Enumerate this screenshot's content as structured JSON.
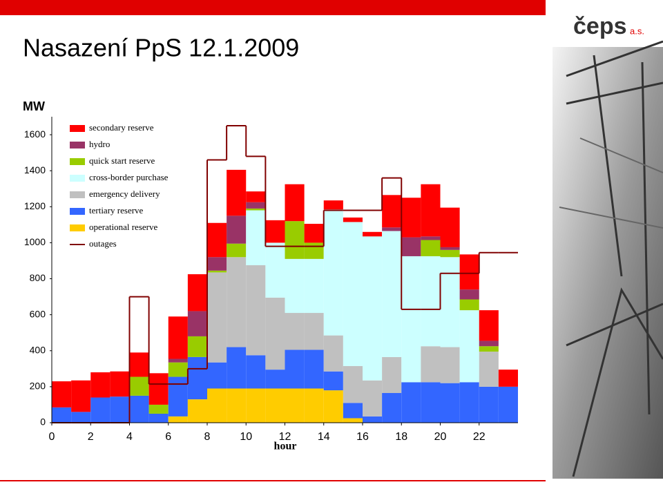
{
  "header": {
    "title": "Nasazení PpS 12.1.2009",
    "logo": "čeps",
    "logo_suffix": "a.s."
  },
  "chart_data": {
    "type": "stacked_bar",
    "y_label": "MW",
    "x_label": "hour",
    "x": [
      0,
      1,
      2,
      3,
      4,
      5,
      6,
      7,
      8,
      9,
      10,
      11,
      12,
      13,
      14,
      15,
      16,
      17,
      18,
      19,
      20,
      21,
      22,
      23
    ],
    "xlim": [
      0,
      24
    ],
    "xticks": [
      0,
      2,
      4,
      6,
      8,
      10,
      12,
      14,
      16,
      18,
      20,
      22
    ],
    "ylim": [
      0,
      1700
    ],
    "yticks": [
      0,
      200,
      400,
      600,
      800,
      1000,
      1200,
      1400,
      1600
    ],
    "series": [
      {
        "name": "secondary reserve",
        "color": "#ff0000",
        "values": [
          145,
          175,
          140,
          140,
          135,
          175,
          235,
          205,
          190,
          255,
          60,
          125,
          205,
          105,
          50,
          25,
          25,
          180,
          220,
          290,
          220,
          195,
          170,
          95
        ]
      },
      {
        "name": "hydro",
        "color": "#993366",
        "values": [
          0,
          0,
          0,
          0,
          0,
          0,
          20,
          140,
          75,
          155,
          35,
          0,
          0,
          0,
          0,
          0,
          0,
          20,
          105,
          20,
          15,
          55,
          30,
          0
        ]
      },
      {
        "name": "quick start reserve",
        "color": "#99cc00",
        "values": [
          0,
          0,
          0,
          0,
          105,
          50,
          80,
          115,
          10,
          75,
          10,
          0,
          210,
          90,
          0,
          0,
          0,
          0,
          0,
          90,
          40,
          60,
          30,
          0
        ]
      },
      {
        "name": "cross-border purchase",
        "color": "#ccffff",
        "values": [
          0,
          0,
          0,
          0,
          0,
          0,
          0,
          0,
          0,
          0,
          305,
          305,
          300,
          300,
          700,
          800,
          800,
          700,
          700,
          500,
          500,
          400,
          0,
          0
        ]
      },
      {
        "name": "emergency delivery",
        "color": "#c0c0c0",
        "values": [
          0,
          0,
          0,
          0,
          0,
          0,
          0,
          0,
          500,
          500,
          500,
          400,
          205,
          205,
          200,
          205,
          200,
          200,
          0,
          200,
          200,
          0,
          195,
          0
        ]
      },
      {
        "name": "tertiary reserve",
        "color": "#3366ff",
        "values": [
          85,
          60,
          140,
          145,
          150,
          50,
          220,
          235,
          145,
          230,
          185,
          105,
          215,
          215,
          105,
          85,
          35,
          165,
          225,
          225,
          220,
          225,
          200,
          200
        ]
      },
      {
        "name": "operational reserve",
        "color": "#ffcc00",
        "values": [
          0,
          0,
          0,
          0,
          0,
          0,
          35,
          130,
          190,
          190,
          190,
          190,
          190,
          190,
          180,
          25,
          0,
          0,
          0,
          0,
          0,
          0,
          0,
          0
        ]
      }
    ],
    "line_series": {
      "name": "outages",
      "color": "#800000",
      "values": [
        0,
        0,
        0,
        0,
        700,
        215,
        215,
        300,
        1460,
        1650,
        1480,
        980,
        980,
        980,
        1180,
        1180,
        1180,
        1360,
        630,
        630,
        830,
        830,
        945,
        945
      ]
    }
  }
}
